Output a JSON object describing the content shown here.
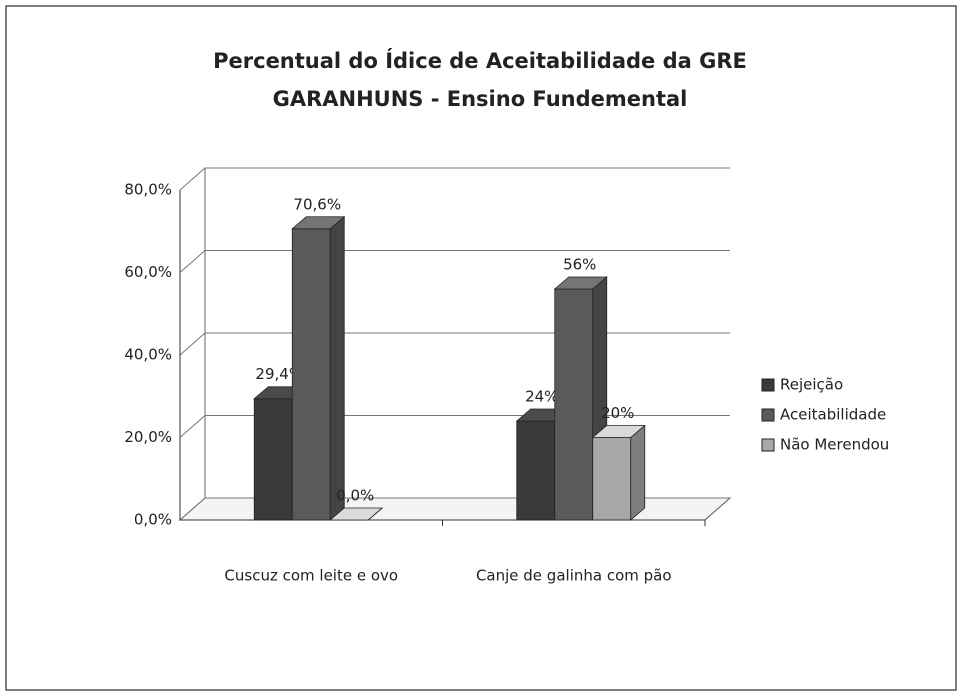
{
  "chart_data": {
    "type": "bar3d",
    "title": "Percentual do Ídice de Aceitabilidade da GRE GARANHUNS - Ensino Fundemental",
    "categories": [
      "Cuscuz com leite e ovo",
      "Canje de galinha com pão"
    ],
    "series": [
      {
        "name": "Rejeição",
        "color": "#3a3a3a",
        "values": [
          29.4,
          24
        ],
        "value_labels": [
          "29,4%",
          "24%"
        ]
      },
      {
        "name": "Aceitabilidade",
        "color": "#5a5a5a",
        "values": [
          70.6,
          56
        ],
        "value_labels": [
          "70,6%",
          "56%"
        ]
      },
      {
        "name": "Não Merendou",
        "color": "#a8a8a8",
        "values": [
          0,
          20
        ],
        "value_labels": [
          "0,0%",
          "20%"
        ]
      }
    ],
    "ylim": [
      0,
      80
    ],
    "yticks": [
      {
        "value": 0,
        "label": "0,0%"
      },
      {
        "value": 20,
        "label": "20,0%"
      },
      {
        "value": 40,
        "label": "40,0%"
      },
      {
        "value": 60,
        "label": "60,0%"
      },
      {
        "value": 80,
        "label": "80,0%"
      }
    ],
    "grid": true,
    "legend": "right"
  }
}
